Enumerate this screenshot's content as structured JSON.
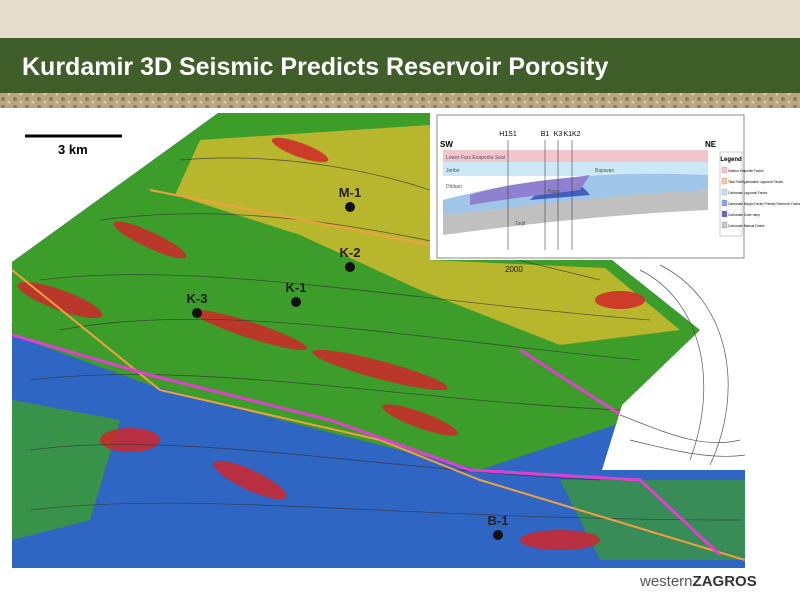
{
  "header": {
    "title": "Kurdamir 3D Seismic Predicts Reservoir Porosity"
  },
  "map": {
    "scale_label": "3 km",
    "contour_label": "2000",
    "wells": [
      {
        "label": "M-1"
      },
      {
        "label": "K-2"
      },
      {
        "label": "K-1"
      },
      {
        "label": "K-3"
      },
      {
        "label": "B-1"
      }
    ]
  },
  "inset": {
    "left": "SW",
    "right": "NE",
    "wells": [
      "H1S1",
      "B1",
      "K3",
      "K1K2"
    ],
    "units": [
      "Lower Fars Evaporite Seal",
      "Jeribe",
      "Dhiban",
      "Tarjil",
      "Baba",
      "Bajawan"
    ],
    "legend": {
      "title": "Legend",
      "items": [
        "Sabkha Evaporite Facies",
        "Tidal Flat/Hypersaline Lagoonal Facies",
        "Carbonate Lagoonal Facies",
        "Carbonate Margin Facies Primary Reservoir Facies",
        "Carbonate Outer ramp",
        "Carbonate Basinal Facies"
      ]
    }
  },
  "footer": {
    "logo_light": "western",
    "logo_bold": "ZAGROS"
  }
}
